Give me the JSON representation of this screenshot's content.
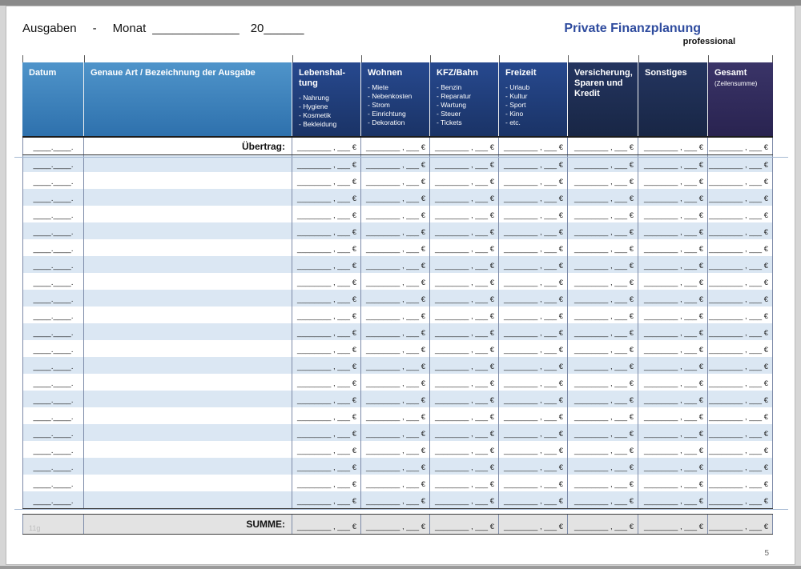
{
  "header": {
    "ausgaben": "Ausgaben",
    "dash": "-",
    "monat": "Monat",
    "month_line": "_____________",
    "year": "20______"
  },
  "brand": {
    "title": "Private Finanzplanung",
    "subtitle": "professional",
    "accent_color": "#2e4b9e"
  },
  "table": {
    "columns": [
      {
        "title": "Datum"
      },
      {
        "title": "Genaue Art / Bezeichnung  der Ausgabe"
      },
      {
        "title": "Lebenshal-\ntung",
        "sub": [
          "- Nahrung",
          "- Hygiene",
          "- Kosmetik",
          "- Bekleidung"
        ]
      },
      {
        "title": "Wohnen",
        "sub": [
          "- Miete",
          "- Nebenkosten",
          "- Strom",
          "- Einrichtung",
          "- Dekoration"
        ]
      },
      {
        "title": "KFZ/Bahn",
        "sub": [
          "- Benzin",
          "- Reparatur",
          "- Wartung",
          "- Steuer",
          "- Tickets"
        ]
      },
      {
        "title": "Freizeit",
        "sub": [
          "- Urlaub",
          "- Kultur",
          "- Sport",
          "- Kino",
          "- etc."
        ]
      },
      {
        "title": "Versicherung,\nSparen und\nKredit"
      },
      {
        "title": "Sonstiges"
      },
      {
        "title": "Gesamt",
        "subtitle": "(Zeilensumme)"
      }
    ],
    "uebertrag_label": "Übertrag:",
    "summe_label": "SUMME:",
    "date_placeholder": "____.____.",
    "amount_placeholder": "________ , ___ €",
    "data_row_count": 21
  },
  "footer": {
    "page_number": "5",
    "watermark": "11g"
  }
}
